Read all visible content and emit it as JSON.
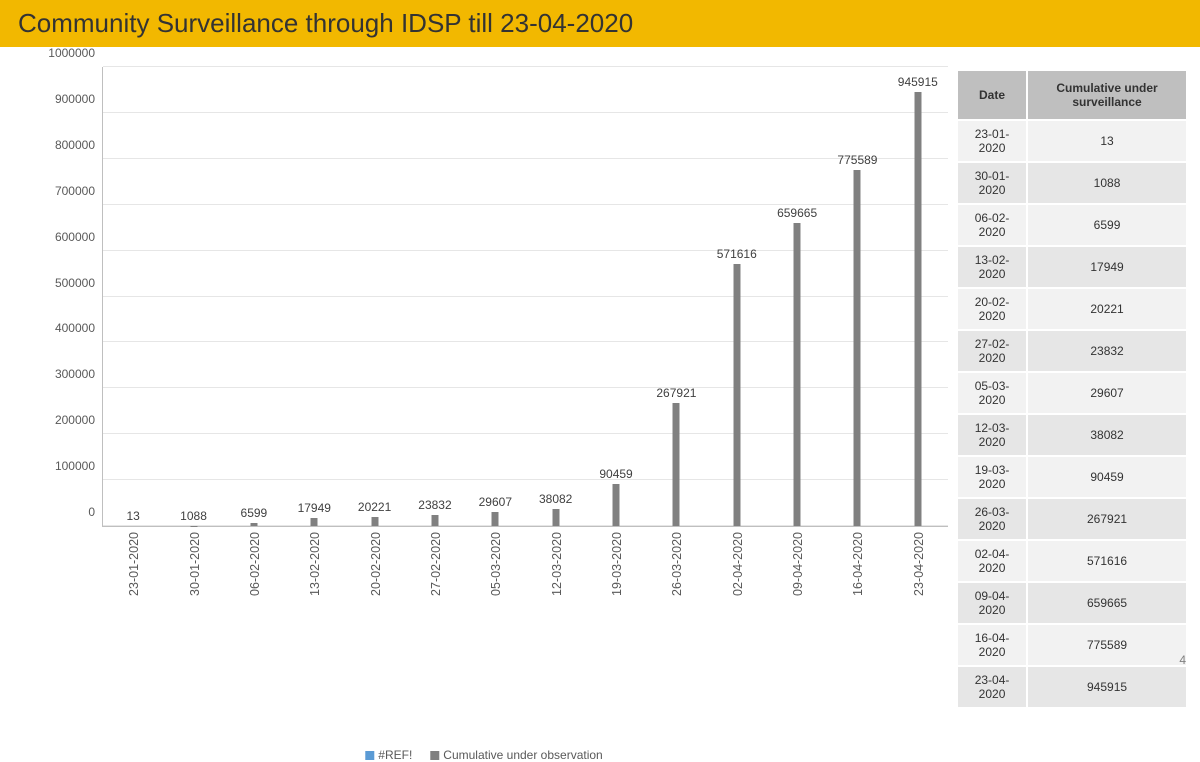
{
  "title": "Community Surveillance through IDSP till 23-04-2020",
  "title_bg": "#f2b800",
  "slide_number": "4",
  "chart": {
    "type": "bar",
    "ylim": [
      0,
      1000000
    ],
    "ytick_step": 100000,
    "bar_color": "#808080",
    "grid_color": "#e6e6e6",
    "axis_color": "#bfbfbf",
    "label_color": "#595959",
    "label_fontsize": 12,
    "categories": [
      "23-01-2020",
      "30-01-2020",
      "06-02-2020",
      "13-02-2020",
      "20-02-2020",
      "27-02-2020",
      "05-03-2020",
      "12-03-2020",
      "19-03-2020",
      "26-03-2020",
      "02-04-2020",
      "09-04-2020",
      "16-04-2020",
      "23-04-2020"
    ],
    "values": [
      13,
      1088,
      6599,
      17949,
      20221,
      23832,
      29607,
      38082,
      90459,
      267921,
      571616,
      659665,
      775589,
      945915
    ],
    "legend": [
      {
        "label": "#REF!",
        "color": "#5b9bd5"
      },
      {
        "label": "Cumulative under observation",
        "color": "#808080"
      }
    ]
  },
  "table": {
    "columns": [
      "Date",
      "Cumulative under surveillance"
    ],
    "rows": [
      [
        "23-01-2020",
        "13"
      ],
      [
        "30-01-2020",
        "1088"
      ],
      [
        "06-02-2020",
        "6599"
      ],
      [
        "13-02-2020",
        "17949"
      ],
      [
        "20-02-2020",
        "20221"
      ],
      [
        "27-02-2020",
        "23832"
      ],
      [
        "05-03-2020",
        "29607"
      ],
      [
        "12-03-2020",
        "38082"
      ],
      [
        "19-03-2020",
        "90459"
      ],
      [
        "26-03-2020",
        "267921"
      ],
      [
        "02-04-2020",
        "571616"
      ],
      [
        "09-04-2020",
        "659665"
      ],
      [
        "16-04-2020",
        "775589"
      ],
      [
        "23-04-2020",
        "945915"
      ]
    ]
  }
}
